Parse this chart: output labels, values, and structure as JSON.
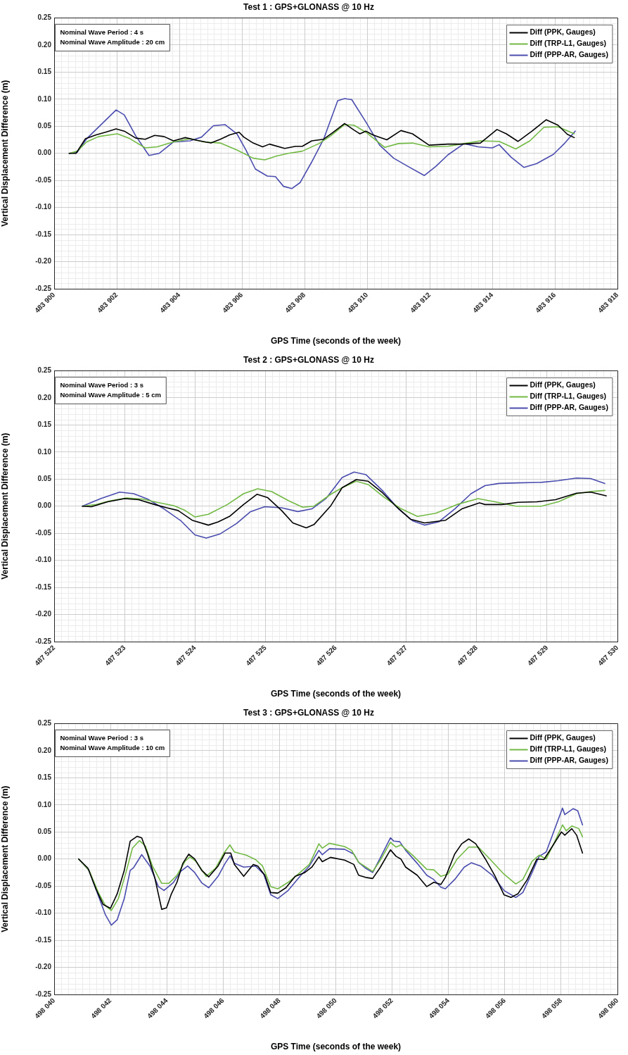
{
  "chart_data": [
    {
      "type": "line",
      "title": "Test 1 : GPS+GLONASS @ 10 Hz",
      "xlabel": "GPS Time (seconds of the week)",
      "ylabel": "Vertical Displacement Difference (m)",
      "annotations": [
        "Nominal Wave Period : 4 s",
        "Nominal Wave Amplitude : 20 cm"
      ],
      "xlim": [
        483900,
        483918
      ],
      "xticks": [
        {
          "value": 483900,
          "label": "483 900"
        },
        {
          "value": 483902,
          "label": "483 902"
        },
        {
          "value": 483904,
          "label": "483 904"
        },
        {
          "value": 483906,
          "label": "483 906"
        },
        {
          "value": 483908,
          "label": "483 908"
        },
        {
          "value": 483910,
          "label": "483 910"
        },
        {
          "value": 483912,
          "label": "483 912"
        },
        {
          "value": 483914,
          "label": "483 914"
        },
        {
          "value": 483916,
          "label": "483 916"
        },
        {
          "value": 483918,
          "label": "483 918"
        }
      ],
      "ylim": [
        -0.25,
        0.25
      ],
      "yticks": [
        -0.25,
        {
          "value": -0.2,
          "label": "-0.20"
        },
        -0.15,
        {
          "value": -0.1,
          "label": "-0.10"
        },
        -0.05,
        {
          "value": 0,
          "label": "0.00"
        },
        0.05,
        {
          "value": 0.1,
          "label": "0.10"
        },
        0.15,
        {
          "value": 0.2,
          "label": "0.20"
        },
        0.25
      ],
      "grid": true,
      "legend": "top right",
      "series": [
        {
          "name": "Diff (PPK, Gauges)",
          "color": "#000000",
          "x": [
            483900.48,
            483900.7,
            483901.0,
            483901.34,
            483901.64,
            483901.98,
            483902.24,
            483902.61,
            483902.91,
            483903.21,
            483903.51,
            483903.81,
            483904.19,
            483904.56,
            483905.01,
            483905.31,
            483905.61,
            483905.91,
            483906.06,
            483906.36,
            483906.66,
            483906.88,
            483907.37,
            483907.71,
            483907.93,
            483908.23,
            483908.61,
            483908.9,
            483909.28,
            483909.58,
            483909.77,
            483909.96,
            483910.18,
            483910.63,
            483911.08,
            483911.45,
            483911.98,
            483912.58,
            483913.03,
            483913.62,
            483914.15,
            483914.45,
            483914.82,
            483915.27,
            483915.72,
            483916.1,
            483916.4,
            483916.62
          ],
          "values": [
            0.0,
            0.0,
            0.027,
            0.034,
            0.039,
            0.045,
            0.041,
            0.028,
            0.026,
            0.033,
            0.031,
            0.023,
            0.029,
            0.024,
            0.019,
            0.026,
            0.034,
            0.039,
            0.03,
            0.019,
            0.012,
            0.017,
            0.009,
            0.013,
            0.013,
            0.023,
            0.026,
            0.038,
            0.055,
            0.043,
            0.036,
            0.041,
            0.034,
            0.025,
            0.042,
            0.036,
            0.015,
            0.017,
            0.017,
            0.019,
            0.044,
            0.036,
            0.022,
            0.041,
            0.062,
            0.052,
            0.035,
            0.029
          ]
        },
        {
          "name": "Diff (TRP-L1, Gauges)",
          "color": "#72b944",
          "x": [
            483900.48,
            483900.74,
            483901.04,
            483901.42,
            483902.02,
            483902.39,
            483902.91,
            483903.29,
            483903.81,
            483904.34,
            483904.79,
            483905.31,
            483905.84,
            483906.36,
            483906.73,
            483907.11,
            483907.48,
            483907.93,
            483908.46,
            483908.83,
            483909.28,
            483909.58,
            483909.96,
            483910.56,
            483911.0,
            483911.45,
            483911.98,
            483912.58,
            483913.1,
            483913.62,
            483914.22,
            483914.75,
            483915.2,
            483915.65,
            483916.1,
            483916.62
          ],
          "values": [
            0.0,
            0.004,
            0.021,
            0.031,
            0.036,
            0.028,
            0.01,
            0.012,
            0.021,
            0.027,
            0.021,
            0.019,
            0.006,
            -0.009,
            -0.012,
            -0.005,
            0.0,
            0.004,
            0.018,
            0.032,
            0.053,
            0.052,
            0.039,
            0.011,
            0.018,
            0.019,
            0.012,
            0.013,
            0.018,
            0.023,
            0.022,
            0.008,
            0.023,
            0.048,
            0.049,
            0.036
          ]
        },
        {
          "name": "Diff (PPP-AR, Gauges)",
          "color": "#4a4cae",
          "x": [
            483900.48,
            483900.74,
            483901.04,
            483901.57,
            483901.98,
            483902.24,
            483902.61,
            483903.03,
            483903.36,
            483903.81,
            483904.34,
            483904.71,
            483905.09,
            483905.46,
            483905.84,
            483906.13,
            483906.43,
            483906.81,
            483907.07,
            483907.33,
            483907.6,
            483907.86,
            483908.23,
            483908.61,
            483909.06,
            483909.28,
            483909.51,
            483909.96,
            483910.4,
            483910.85,
            483911.3,
            483911.83,
            483912.2,
            483912.58,
            483913.1,
            483913.55,
            483914.0,
            483914.22,
            483914.6,
            483915.01,
            483915.42,
            483915.95,
            483916.32,
            483916.65
          ],
          "values": [
            0.0,
            0.002,
            0.027,
            0.057,
            0.08,
            0.071,
            0.032,
            -0.004,
            0.0,
            0.021,
            0.023,
            0.03,
            0.051,
            0.053,
            0.036,
            0.006,
            -0.029,
            -0.042,
            -0.043,
            -0.061,
            -0.065,
            -0.054,
            -0.016,
            0.026,
            0.097,
            0.101,
            0.099,
            0.058,
            0.015,
            -0.009,
            -0.024,
            -0.041,
            -0.024,
            -0.003,
            0.018,
            0.012,
            0.01,
            0.016,
            -0.007,
            -0.026,
            -0.019,
            -0.002,
            0.019,
            0.041
          ]
        }
      ]
    },
    {
      "type": "line",
      "title": "Test 2 : GPS+GLONASS @ 10 Hz",
      "xlabel": "GPS Time (seconds of the week)",
      "ylabel": "Vertical Displacement Difference (m)",
      "annotations": [
        "Nominal Wave Period : 3 s",
        "Nominal Wave Amplitude : 5 cm"
      ],
      "xlim": [
        487522,
        487530
      ],
      "xticks": [
        {
          "value": 487522,
          "label": "487 522"
        },
        {
          "value": 487523,
          "label": "487 523"
        },
        {
          "value": 487524,
          "label": "487 524"
        },
        {
          "value": 487525,
          "label": "487 525"
        },
        {
          "value": 487526,
          "label": "487 526"
        },
        {
          "value": 487527,
          "label": "487 527"
        },
        {
          "value": 487528,
          "label": "487 528"
        },
        {
          "value": 487529,
          "label": "487 529"
        },
        {
          "value": 487530,
          "label": "487 530"
        }
      ],
      "ylim": [
        -0.25,
        0.25
      ],
      "yticks": [
        -0.25,
        {
          "value": -0.2,
          "label": "-0.20"
        },
        -0.15,
        {
          "value": -0.1,
          "label": "-0.10"
        },
        -0.05,
        {
          "value": 0,
          "label": "0.00"
        },
        0.05,
        {
          "value": 0.1,
          "label": "0.10"
        },
        0.15,
        {
          "value": 0.2,
          "label": "0.20"
        },
        0.25
      ],
      "grid": true,
      "legend": "top right",
      "series": [
        {
          "name": "Diff (PPK, Gauges)",
          "color": "#000000",
          "x": [
            487522.4,
            487522.53,
            487522.76,
            487523.0,
            487523.2,
            487523.4,
            487523.6,
            487523.76,
            487523.96,
            487524.19,
            487524.33,
            487524.49,
            487524.69,
            487524.88,
            487525.03,
            487525.23,
            487525.39,
            487525.58,
            487525.69,
            487525.93,
            487526.09,
            487526.29,
            487526.46,
            487526.66,
            487526.86,
            487527.06,
            487527.26,
            487527.56,
            487527.79,
            487528.04,
            487528.12,
            487528.36,
            487528.59,
            487528.86,
            487529.12,
            487529.42,
            487529.62,
            487529.84
          ],
          "values": [
            0.0,
            -0.001,
            0.008,
            0.014,
            0.012,
            0.004,
            -0.003,
            -0.008,
            -0.026,
            -0.035,
            -0.029,
            -0.019,
            0.003,
            0.022,
            0.016,
            -0.008,
            -0.031,
            -0.04,
            -0.034,
            0.001,
            0.034,
            0.049,
            0.046,
            0.025,
            -0.001,
            -0.024,
            -0.031,
            -0.026,
            -0.005,
            0.006,
            0.003,
            0.003,
            0.007,
            0.008,
            0.012,
            0.024,
            0.026,
            0.019
          ]
        },
        {
          "name": "Diff (TRP-L1, Gauges)",
          "color": "#72b944",
          "x": [
            487522.4,
            487522.6,
            487522.8,
            487523.03,
            487523.26,
            487523.46,
            487523.7,
            487523.86,
            487524.0,
            487524.19,
            487524.46,
            487524.69,
            487524.89,
            487525.09,
            487525.33,
            487525.53,
            487525.69,
            487525.93,
            487526.09,
            487526.29,
            487526.46,
            487526.69,
            487526.93,
            487527.16,
            487527.42,
            487527.72,
            487528.02,
            487528.26,
            487528.56,
            487528.92,
            487529.16,
            487529.42,
            487529.62,
            487529.82
          ],
          "values": [
            0.0,
            0.003,
            0.01,
            0.015,
            0.013,
            0.007,
            0.001,
            -0.008,
            -0.02,
            -0.015,
            0.003,
            0.023,
            0.032,
            0.027,
            0.01,
            -0.002,
            0.0,
            0.022,
            0.034,
            0.046,
            0.04,
            0.016,
            -0.005,
            -0.019,
            -0.013,
            0.003,
            0.014,
            0.008,
            0.0,
            0.0,
            0.008,
            0.023,
            0.027,
            0.029
          ]
        },
        {
          "name": "Diff (PPP-AR, Gauges)",
          "color": "#4a4cae",
          "x": [
            487522.4,
            487522.66,
            487522.93,
            487523.13,
            487523.33,
            487523.56,
            487523.8,
            487524.0,
            487524.16,
            487524.36,
            487524.59,
            487524.79,
            487524.99,
            487525.23,
            487525.46,
            487525.66,
            487525.86,
            487526.09,
            487526.26,
            487526.43,
            487526.66,
            487526.89,
            487527.09,
            487527.26,
            487527.46,
            487527.69,
            487527.92,
            487528.12,
            487528.32,
            487528.59,
            487528.92,
            487529.16,
            487529.42,
            487529.62,
            487529.82
          ],
          "values": [
            0.0,
            0.014,
            0.026,
            0.023,
            0.013,
            -0.005,
            -0.027,
            -0.053,
            -0.059,
            -0.051,
            -0.032,
            -0.01,
            -0.001,
            -0.003,
            -0.01,
            -0.005,
            0.014,
            0.053,
            0.063,
            0.058,
            0.029,
            -0.005,
            -0.027,
            -0.035,
            -0.029,
            -0.005,
            0.023,
            0.038,
            0.042,
            0.043,
            0.044,
            0.047,
            0.052,
            0.051,
            0.042
          ]
        }
      ]
    },
    {
      "type": "line",
      "title": "Test 3 : GPS+GLONASS @ 10 Hz",
      "xlabel": "GPS Time (seconds of the week)",
      "ylabel": "Vertical Displacement Difference (m)",
      "annotations": [
        "Nominal Wave Period : 3 s",
        "Nominal Wave Amplitude : 10 cm"
      ],
      "xlim": [
        498040,
        498060
      ],
      "xticks": [
        {
          "value": 498040,
          "label": "498 040"
        },
        {
          "value": 498042,
          "label": "498 042"
        },
        {
          "value": 498044,
          "label": "498 044"
        },
        {
          "value": 498046,
          "label": "498 046"
        },
        {
          "value": 498048,
          "label": "498 048"
        },
        {
          "value": 498050,
          "label": "498 050"
        },
        {
          "value": 498052,
          "label": "498 052"
        },
        {
          "value": 498054,
          "label": "498 054"
        },
        {
          "value": 498056,
          "label": "498 056"
        },
        {
          "value": 498058,
          "label": "498 058"
        },
        {
          "value": 498060,
          "label": "498 060"
        }
      ],
      "ylim": [
        -0.25,
        0.25
      ],
      "yticks": [
        -0.25,
        {
          "value": -0.2,
          "label": "-0.20"
        },
        -0.15,
        {
          "value": -0.1,
          "label": "-0.10"
        },
        -0.05,
        {
          "value": 0,
          "label": "0.00"
        },
        0.05,
        {
          "value": 0.1,
          "label": "0.10"
        },
        0.15,
        {
          "value": 0.2,
          "label": "0.20"
        },
        0.25
      ],
      "grid": true,
      "legend": "top right",
      "series": [
        {
          "name": "Diff (PPK, Gauges)",
          "color": "#000000",
          "x": [
            498040.87,
            498041.2,
            498041.49,
            498041.74,
            498042.0,
            498042.24,
            498042.49,
            498042.7,
            498042.95,
            498043.11,
            498043.32,
            498043.57,
            498043.82,
            498043.99,
            498044.15,
            498044.36,
            498044.57,
            498044.78,
            498044.99,
            498045.24,
            498045.49,
            498045.82,
            498046.07,
            498046.27,
            498046.4,
            498046.73,
            498047.07,
            498047.23,
            498047.48,
            498047.69,
            498047.94,
            498048.23,
            498048.56,
            498048.9,
            498049.15,
            498049.4,
            498049.52,
            498049.81,
            498050.31,
            498050.64,
            498050.81,
            498051.06,
            498051.31,
            498051.56,
            498051.94,
            498052.14,
            498052.31,
            498052.48,
            498052.89,
            498053.23,
            498053.48,
            498053.73,
            498053.89,
            498054.22,
            498054.47,
            498054.72,
            498054.97,
            498055.31,
            498055.64,
            498055.97,
            498056.22,
            498056.47,
            498056.8,
            498057.14,
            498057.39,
            498057.72,
            498058.01,
            498058.13,
            498058.38,
            498058.55,
            498058.76
          ],
          "values": [
            0.0,
            -0.017,
            -0.056,
            -0.084,
            -0.091,
            -0.064,
            -0.021,
            0.033,
            0.042,
            0.039,
            0.009,
            -0.034,
            -0.093,
            -0.09,
            -0.066,
            -0.043,
            -0.008,
            0.009,
            0.0,
            -0.021,
            -0.033,
            -0.013,
            0.011,
            0.011,
            -0.01,
            -0.032,
            -0.01,
            -0.013,
            -0.03,
            -0.062,
            -0.063,
            -0.053,
            -0.032,
            -0.025,
            -0.015,
            0.004,
            -0.005,
            0.003,
            -0.002,
            -0.01,
            -0.03,
            -0.034,
            -0.036,
            -0.017,
            0.017,
            0.005,
            0.0,
            -0.015,
            -0.03,
            -0.051,
            -0.043,
            -0.047,
            -0.034,
            0.009,
            0.028,
            0.037,
            0.028,
            0.0,
            -0.03,
            -0.066,
            -0.071,
            -0.064,
            -0.038,
            0.0,
            -0.001,
            0.026,
            0.05,
            0.044,
            0.056,
            0.044,
            0.011
          ]
        },
        {
          "name": "Diff (TRP-L1, Gauges)",
          "color": "#72b944",
          "x": [
            498040.87,
            498041.24,
            498041.57,
            498041.82,
            498042.03,
            498042.28,
            498042.57,
            498042.78,
            498043.03,
            498043.24,
            498043.49,
            498043.82,
            498044.07,
            498044.36,
            498044.65,
            498044.82,
            498045.03,
            498045.4,
            498045.73,
            498046.03,
            498046.24,
            498046.4,
            498046.82,
            498047.15,
            498047.4,
            498047.69,
            498047.94,
            498048.31,
            498048.73,
            498049.06,
            498049.4,
            498049.52,
            498049.77,
            498050.31,
            498050.56,
            498050.81,
            498051.31,
            498051.56,
            498051.94,
            498052.14,
            498052.31,
            498052.73,
            498053.23,
            498053.48,
            498053.73,
            498053.98,
            498054.31,
            498054.72,
            498055.06,
            498055.47,
            498055.97,
            498056.39,
            498056.64,
            498056.97,
            498057.22,
            498057.47,
            498057.8,
            498058.05,
            498058.18,
            498058.38,
            498058.63,
            498058.76
          ],
          "values": [
            0.0,
            -0.021,
            -0.062,
            -0.086,
            -0.095,
            -0.073,
            -0.021,
            0.02,
            0.034,
            0.024,
            -0.013,
            -0.045,
            -0.045,
            -0.03,
            -0.004,
            0.004,
            -0.004,
            -0.032,
            -0.017,
            0.011,
            0.026,
            0.013,
            0.007,
            -0.001,
            -0.013,
            -0.051,
            -0.055,
            -0.043,
            -0.025,
            -0.01,
            0.028,
            0.02,
            0.029,
            0.023,
            0.016,
            -0.006,
            -0.023,
            -0.004,
            0.031,
            0.022,
            0.026,
            0.007,
            -0.019,
            -0.02,
            -0.032,
            -0.028,
            0.0,
            0.022,
            0.022,
            0.0,
            -0.028,
            -0.046,
            -0.038,
            -0.004,
            0.007,
            0.0,
            0.035,
            0.063,
            0.052,
            0.061,
            0.056,
            0.041
          ]
        },
        {
          "name": "Diff (PPP-AR, Gauges)",
          "color": "#4a4cae",
          "x": [
            498040.87,
            498041.24,
            498041.57,
            498041.82,
            498042.03,
            498042.24,
            498042.49,
            498042.7,
            498042.82,
            498043.11,
            498043.4,
            498043.7,
            498043.9,
            498044.24,
            498044.49,
            498044.74,
            498044.99,
            498045.24,
            498045.49,
            498045.82,
            498046.07,
            498046.25,
            498046.4,
            498046.73,
            498047.15,
            498047.44,
            498047.69,
            498047.94,
            498048.31,
            498048.73,
            498049.06,
            498049.4,
            498049.52,
            498049.77,
            498050.31,
            498050.64,
            498050.81,
            498051.06,
            498051.31,
            498051.56,
            498051.94,
            498052.06,
            498052.27,
            498052.48,
            498052.89,
            498053.23,
            498053.48,
            498053.73,
            498053.89,
            498054.22,
            498054.56,
            498054.81,
            498055.14,
            498055.56,
            498055.97,
            498056.39,
            498056.64,
            498056.97,
            498057.22,
            498057.47,
            498057.72,
            498058.05,
            498058.13,
            498058.43,
            498058.59,
            498058.76
          ],
          "values": [
            0.0,
            -0.021,
            -0.068,
            -0.103,
            -0.122,
            -0.112,
            -0.073,
            -0.021,
            -0.016,
            0.008,
            -0.013,
            -0.051,
            -0.058,
            -0.043,
            -0.023,
            -0.013,
            -0.025,
            -0.044,
            -0.053,
            -0.032,
            -0.008,
            0.006,
            -0.008,
            -0.015,
            -0.013,
            -0.028,
            -0.066,
            -0.073,
            -0.058,
            -0.032,
            -0.013,
            0.016,
            0.008,
            0.019,
            0.018,
            0.009,
            -0.006,
            -0.017,
            -0.025,
            0.0,
            0.039,
            0.033,
            0.032,
            0.016,
            -0.008,
            -0.03,
            -0.038,
            -0.052,
            -0.055,
            -0.038,
            -0.015,
            -0.007,
            -0.013,
            -0.03,
            -0.058,
            -0.071,
            -0.062,
            -0.025,
            0.005,
            0.013,
            0.048,
            0.094,
            0.082,
            0.093,
            0.089,
            0.063
          ]
        }
      ]
    }
  ]
}
